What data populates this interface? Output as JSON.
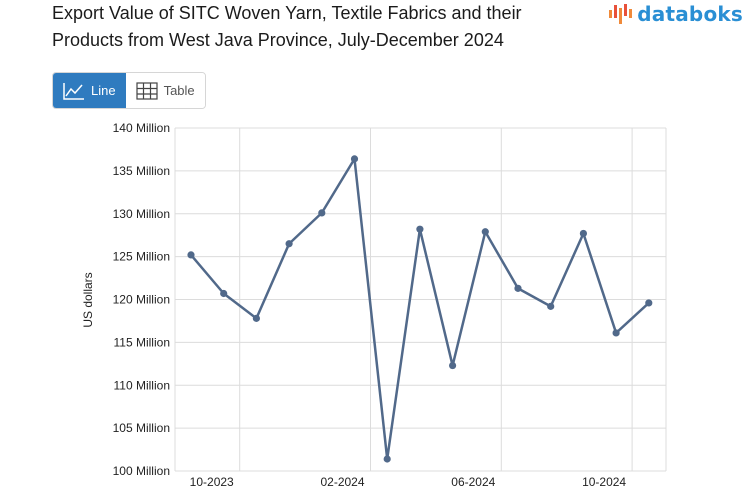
{
  "title": "Export Value of SITC Woven Yarn, Textile Fabrics and their Products from West Java Province, July-December 2024",
  "brand": {
    "name": "databoks",
    "color": "#2a8fd4",
    "icon": "bar-logo-icon"
  },
  "view_toggle": {
    "line_label": "Line",
    "table_label": "Table",
    "selected": "Line"
  },
  "colors": {
    "line": "#51698a",
    "grid": "#dcdcdc",
    "active_button": "#2f7bbf"
  },
  "chart_data": {
    "type": "line",
    "title": "Export Value of SITC Woven Yarn, Textile Fabrics and their Products from West Java Province, July-December 2024",
    "xlabel": "",
    "ylabel": "US dollars",
    "ylim": [
      100,
      140
    ],
    "y_unit": "Million",
    "y_tick_values": [
      100,
      105,
      110,
      115,
      120,
      125,
      130,
      135,
      140
    ],
    "y_tick_labels": [
      "100 Million",
      "105 Million",
      "110 Million",
      "115 Million",
      "120 Million",
      "125 Million",
      "130 Million",
      "135 Million",
      "140 Million"
    ],
    "x": [
      "2023-09",
      "2023-10",
      "2023-11",
      "2023-12",
      "2024-01",
      "2024-02",
      "2024-03",
      "2024-04",
      "2024-05",
      "2024-06",
      "2024-07",
      "2024-08",
      "2024-09",
      "2024-10",
      "2024-11"
    ],
    "x_ticks": [
      "2023-10",
      "2024-02",
      "2024-06",
      "2024-10"
    ],
    "x_tick_labels": [
      "10-2023",
      "02-2024",
      "06-2024",
      "10-2024"
    ],
    "series": [
      {
        "values": [
          125.2,
          120.7,
          117.8,
          126.5,
          130.1,
          136.4,
          101.4,
          128.2,
          112.3,
          127.9,
          121.3,
          119.2,
          127.7,
          116.1,
          119.6
        ]
      }
    ],
    "grid": true,
    "legend": "none"
  }
}
